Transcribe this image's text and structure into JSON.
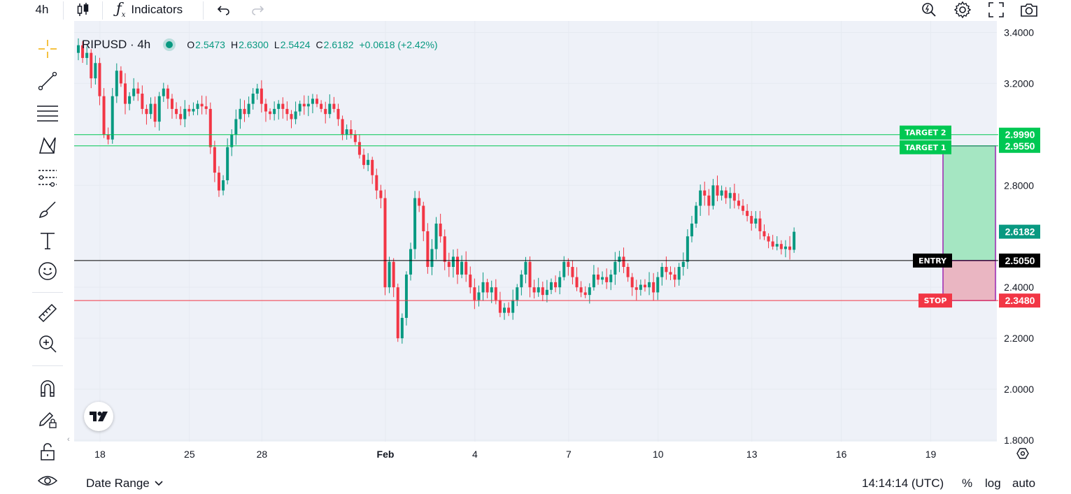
{
  "toolbar": {
    "interval": "4h",
    "indicators_label": "Indicators"
  },
  "legend": {
    "symbol": "RIPUSD · 4h",
    "o_label": "O",
    "o_value": "2.5473",
    "h_label": "H",
    "h_value": "2.6300",
    "l_label": "L",
    "l_value": "2.5424",
    "c_label": "C",
    "c_value": "2.6182",
    "change": "+0.0618 (+2.42%)"
  },
  "bottom": {
    "date_range": "Date Range",
    "time": "14:14:14 (UTC)",
    "percent": "%",
    "log": "log",
    "auto": "auto"
  },
  "colors": {
    "up": "#089981",
    "down": "#f23645",
    "target": "#00c853",
    "stop": "#f23645",
    "entry": "#000000",
    "profit_zone": "#a5e6c2",
    "loss_zone": "#eab6c2",
    "zone_border": "#9c27b0",
    "grid": "#e6eaf1",
    "chart_bg": "#eef1f8"
  },
  "chart_data": {
    "type": "candlestick",
    "title": "",
    "xlabel": "",
    "ylabel": "",
    "ylim": [
      1.8,
      3.4
    ],
    "y_ticks": [
      "3.4000",
      "3.2000",
      "2.8000",
      "2.4000",
      "2.2000",
      "2.0000",
      "1.8000"
    ],
    "x_ticks": [
      {
        "label": "18",
        "bar": 5
      },
      {
        "label": "25",
        "bar": 26
      },
      {
        "label": "28",
        "bar": 43
      },
      {
        "label": "Feb",
        "bar": 72
      },
      {
        "label": "4",
        "bar": 93
      },
      {
        "label": "7",
        "bar": 115
      },
      {
        "label": "10",
        "bar": 136
      },
      {
        "label": "13",
        "bar": 158
      },
      {
        "label": "16",
        "bar": 179
      },
      {
        "label": "19",
        "bar": 200
      }
    ],
    "grid": true,
    "legend_position": "top-left",
    "last_close": 2.6182,
    "levels": [
      {
        "label": "TARGET 2",
        "value": 2.999,
        "value_label": "2.9990",
        "type": "target"
      },
      {
        "label": "TARGET 1",
        "value": 2.955,
        "value_label": "2.9550",
        "type": "target"
      },
      {
        "label": "ENTRY",
        "value": 2.505,
        "value_label": "2.5050",
        "type": "entry"
      },
      {
        "label": "STOP",
        "value": 2.348,
        "value_label": "2.3480",
        "type": "stop"
      }
    ],
    "closes": [
      3.35,
      3.3,
      3.32,
      3.22,
      3.28,
      3.15,
      3.0,
      2.98,
      3.15,
      3.25,
      3.2,
      3.12,
      3.15,
      3.18,
      3.16,
      3.1,
      3.08,
      3.12,
      3.05,
      3.15,
      3.18,
      3.14,
      3.1,
      3.08,
      3.06,
      3.1,
      3.09,
      3.1,
      3.12,
      3.11,
      3.1,
      2.95,
      2.85,
      2.78,
      2.82,
      2.95,
      3.0,
      3.06,
      3.1,
      3.08,
      3.12,
      3.16,
      3.18,
      3.12,
      3.09,
      3.08,
      3.1,
      3.12,
      3.1,
      3.08,
      3.06,
      3.09,
      3.12,
      3.11,
      3.12,
      3.14,
      3.12,
      3.1,
      3.08,
      3.12,
      3.1,
      3.06,
      3.0,
      3.02,
      3.0,
      2.97,
      2.92,
      2.88,
      2.9,
      2.84,
      2.78,
      2.75,
      2.4,
      2.5,
      2.4,
      2.2,
      2.28,
      2.45,
      2.55,
      2.75,
      2.72,
      2.62,
      2.48,
      2.55,
      2.65,
      2.6,
      2.5,
      2.48,
      2.52,
      2.45,
      2.5,
      2.45,
      2.4,
      2.35,
      2.38,
      2.42,
      2.38,
      2.4,
      2.35,
      2.3,
      2.32,
      2.3,
      2.35,
      2.4,
      2.45,
      2.5,
      2.4,
      2.38,
      2.4,
      2.37,
      2.39,
      2.42,
      2.4,
      2.44,
      2.5,
      2.48,
      2.44,
      2.4,
      2.38,
      2.37,
      2.4,
      2.45,
      2.43,
      2.44,
      2.42,
      2.45,
      2.5,
      2.52,
      2.48,
      2.44,
      2.4,
      2.39,
      2.41,
      2.4,
      2.42,
      2.38,
      2.44,
      2.48,
      2.46,
      2.45,
      2.43,
      2.48,
      2.5,
      2.6,
      2.65,
      2.72,
      2.78,
      2.76,
      2.72,
      2.8,
      2.76,
      2.78,
      2.75,
      2.77,
      2.74,
      2.72,
      2.7,
      2.68,
      2.65,
      2.67,
      2.62,
      2.6,
      2.58,
      2.56,
      2.57,
      2.55,
      2.56,
      2.547,
      2.618
    ]
  }
}
